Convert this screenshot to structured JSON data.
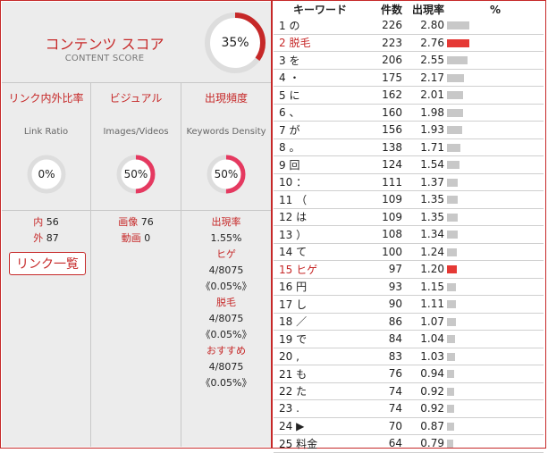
{
  "score": {
    "title": "コンテンツ スコア",
    "subtitle": "CONTENT SCORE",
    "value_label": "35%",
    "value": 35
  },
  "columns": {
    "link": {
      "title": "リンク内外比率",
      "subtitle": "Link Ratio",
      "value_label": "0%",
      "value": 0
    },
    "visual": {
      "title": "ビジュアル",
      "subtitle": "Images/Videos",
      "value_label": "50%",
      "value": 50
    },
    "freq": {
      "title": "出現頻度",
      "subtitle": "Keywords Density",
      "value_label": "50%",
      "value": 50
    }
  },
  "link_stats": {
    "inner_label": "内",
    "inner_value": "56",
    "outer_label": "外",
    "outer_value": "87",
    "button_label": "リンク一覧"
  },
  "visual_stats": {
    "image_label": "画像",
    "image_value": "76",
    "video_label": "動画",
    "video_value": "0"
  },
  "freq_stats": {
    "title": "出現率",
    "overall": "1.55%",
    "items": [
      {
        "keyword": "ヒゲ",
        "count": "4/8075",
        "pct": "《0.05%》"
      },
      {
        "keyword": "脱毛",
        "count": "4/8075",
        "pct": "《0.05%》"
      },
      {
        "keyword": "おすすめ",
        "count": "4/8075",
        "pct": "《0.05%》"
      }
    ]
  },
  "table": {
    "headers": {
      "keyword": "キーワード",
      "count": "件数",
      "rate": "出現率",
      "pct": "%"
    },
    "rows": [
      {
        "keyword": "1 の",
        "count": "226",
        "rate": "2.80",
        "value": 2.8,
        "highlight": false
      },
      {
        "keyword": "2 脱毛",
        "count": "223",
        "rate": "2.76",
        "value": 2.76,
        "highlight": true
      },
      {
        "keyword": "3 を",
        "count": "206",
        "rate": "2.55",
        "value": 2.55,
        "highlight": false
      },
      {
        "keyword": "4 ・",
        "count": "175",
        "rate": "2.17",
        "value": 2.17,
        "highlight": false
      },
      {
        "keyword": "5 に",
        "count": "162",
        "rate": "2.01",
        "value": 2.01,
        "highlight": false
      },
      {
        "keyword": "6 、",
        "count": "160",
        "rate": "1.98",
        "value": 1.98,
        "highlight": false
      },
      {
        "keyword": "7 が",
        "count": "156",
        "rate": "1.93",
        "value": 1.93,
        "highlight": false
      },
      {
        "keyword": "8 。",
        "count": "138",
        "rate": "1.71",
        "value": 1.71,
        "highlight": false
      },
      {
        "keyword": "9 回",
        "count": "124",
        "rate": "1.54",
        "value": 1.54,
        "highlight": false
      },
      {
        "keyword": "10 ：",
        "count": "111",
        "rate": "1.37",
        "value": 1.37,
        "highlight": false
      },
      {
        "keyword": "11 （",
        "count": "109",
        "rate": "1.35",
        "value": 1.35,
        "highlight": false
      },
      {
        "keyword": "12 は",
        "count": "109",
        "rate": "1.35",
        "value": 1.35,
        "highlight": false
      },
      {
        "keyword": "13 ）",
        "count": "108",
        "rate": "1.34",
        "value": 1.34,
        "highlight": false
      },
      {
        "keyword": "14 て",
        "count": "100",
        "rate": "1.24",
        "value": 1.24,
        "highlight": false
      },
      {
        "keyword": "15 ヒゲ",
        "count": "97",
        "rate": "1.20",
        "value": 1.2,
        "highlight": true
      },
      {
        "keyword": "16 円",
        "count": "93",
        "rate": "1.15",
        "value": 1.15,
        "highlight": false
      },
      {
        "keyword": "17 し",
        "count": "90",
        "rate": "1.11",
        "value": 1.11,
        "highlight": false
      },
      {
        "keyword": "18 ／",
        "count": "86",
        "rate": "1.07",
        "value": 1.07,
        "highlight": false
      },
      {
        "keyword": "19 で",
        "count": "84",
        "rate": "1.04",
        "value": 1.04,
        "highlight": false
      },
      {
        "keyword": "20 ,",
        "count": "83",
        "rate": "1.03",
        "value": 1.03,
        "highlight": false
      },
      {
        "keyword": "21 も",
        "count": "76",
        "rate": "0.94",
        "value": 0.94,
        "highlight": false
      },
      {
        "keyword": "22 た",
        "count": "74",
        "rate": "0.92",
        "value": 0.92,
        "highlight": false
      },
      {
        "keyword": "23 .",
        "count": "74",
        "rate": "0.92",
        "value": 0.92,
        "highlight": false
      },
      {
        "keyword": "24 ▶",
        "count": "70",
        "rate": "0.87",
        "value": 0.87,
        "highlight": false
      },
      {
        "keyword": "25 料金",
        "count": "64",
        "rate": "0.79",
        "value": 0.79,
        "highlight": false
      }
    ]
  },
  "colors": {
    "accent": "#c62828",
    "bar": "#c8c8c8",
    "bar_highlight": "#e53935",
    "ring_track": "#dddddd"
  }
}
